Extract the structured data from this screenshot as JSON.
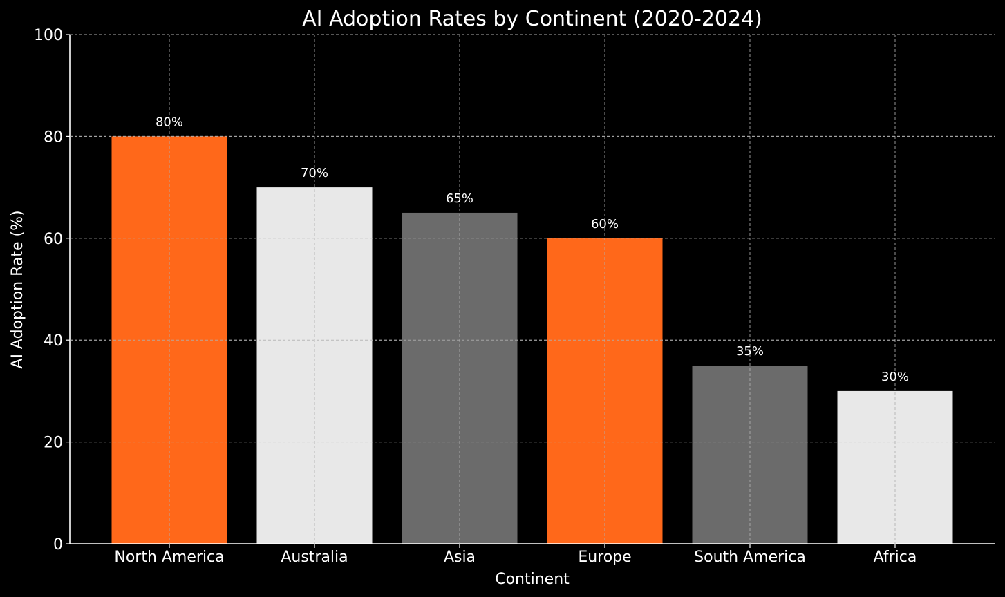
{
  "chart_data": {
    "type": "bar",
    "title": "AI Adoption Rates by Continent (2020-2024)",
    "xlabel": "Continent",
    "ylabel": "AI Adoption Rate (%)",
    "categories": [
      "North America",
      "Australia",
      "Asia",
      "Europe",
      "South America",
      "Africa"
    ],
    "values": [
      80,
      70,
      65,
      60,
      35,
      30
    ],
    "data_labels": [
      "80%",
      "70%",
      "65%",
      "60%",
      "35%",
      "30%"
    ],
    "bar_colors": [
      "#ff681a",
      "#e8e8e8",
      "#6b6b6b",
      "#ff681a",
      "#6b6b6b",
      "#e8e8e8"
    ],
    "ylim": [
      0,
      100
    ],
    "yticks": [
      0,
      20,
      40,
      60,
      80,
      100
    ],
    "ytick_labels": [
      "0",
      "20",
      "40",
      "60",
      "80",
      "100"
    ],
    "grid": true,
    "background": "#000000",
    "text_color": "#ffffff"
  }
}
